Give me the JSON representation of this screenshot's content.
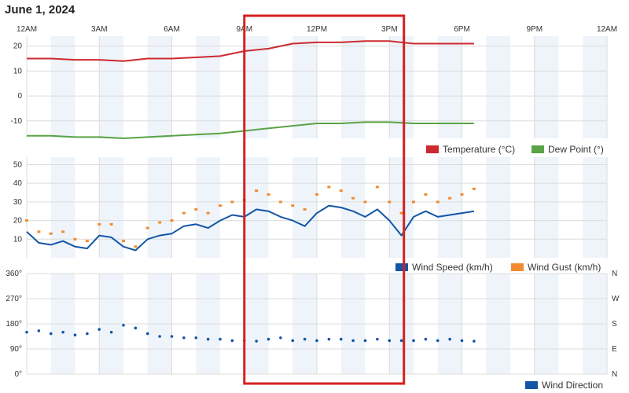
{
  "page": {
    "date_title": "June 1, 2024"
  },
  "colors": {
    "temperature": "#cc2a2f",
    "dew_point": "#5aa346",
    "wind_speed": "#1456a6",
    "wind_gust": "#f28b30",
    "wind_direction": "#1456a6",
    "night_band": "#eef4fa",
    "grid": "#dcdcdc",
    "highlight": "#d62020"
  },
  "time_axis": {
    "labels": [
      "12AM",
      "3AM",
      "6AM",
      "9AM",
      "12PM",
      "3PM",
      "6PM",
      "9PM",
      "12AM"
    ],
    "hours": [
      0,
      3,
      6,
      9,
      12,
      15,
      18,
      21,
      24
    ]
  },
  "highlight": {
    "start_hour": 9.0,
    "end_hour": 15.6
  },
  "chart_data": [
    {
      "type": "line",
      "panel": "temperature",
      "x_unit": "hour",
      "ylim": [
        -17,
        24
      ],
      "yticks": [
        20,
        10,
        0,
        -10
      ],
      "grid": true,
      "legend_position": "bottom-right",
      "series": [
        {
          "name": "Temperature (°C)",
          "x": [
            0,
            1,
            2,
            3,
            4,
            5,
            6,
            7,
            8,
            9,
            10,
            11,
            12,
            13,
            14,
            15,
            16,
            17,
            18,
            18.5
          ],
          "values": [
            15,
            15,
            14.5,
            14.5,
            14,
            15,
            15,
            15.5,
            16,
            18,
            19,
            21,
            21.5,
            21.5,
            22,
            22,
            21,
            21,
            21,
            21
          ]
        },
        {
          "name": "Dew Point (°)",
          "x": [
            0,
            1,
            2,
            3,
            4,
            5,
            6,
            7,
            8,
            9,
            10,
            11,
            12,
            13,
            14,
            15,
            16,
            17,
            18,
            18.5
          ],
          "values": [
            -16,
            -16,
            -16.5,
            -16.5,
            -17,
            -16.5,
            -16,
            -15.5,
            -15,
            -14,
            -13,
            -12,
            -11,
            -11,
            -10.5,
            -10.5,
            -11,
            -11,
            -11,
            -11
          ]
        }
      ]
    },
    {
      "type": "line",
      "panel": "wind_speed",
      "x_unit": "hour",
      "ylim": [
        0,
        54
      ],
      "yticks": [
        50,
        40,
        30,
        20,
        10
      ],
      "grid": true,
      "legend_position": "bottom-right",
      "series": [
        {
          "name": "Wind Speed (km/h)",
          "x": [
            0,
            0.5,
            1,
            1.5,
            2,
            2.5,
            3,
            3.5,
            4,
            4.5,
            5,
            5.5,
            6,
            6.5,
            7,
            7.5,
            8,
            8.5,
            9,
            9.5,
            10,
            10.5,
            11,
            11.5,
            12,
            12.5,
            13,
            13.5,
            14,
            14.5,
            15,
            15.5,
            16,
            16.5,
            17,
            17.5,
            18,
            18.5
          ],
          "values": [
            14,
            8,
            7,
            9,
            6,
            5,
            12,
            11,
            6,
            4,
            10,
            12,
            13,
            17,
            18,
            16,
            20,
            23,
            22,
            26,
            25,
            22,
            20,
            17,
            24,
            28,
            27,
            25,
            22,
            26,
            20,
            12,
            22,
            25,
            22,
            23,
            24,
            25
          ]
        },
        {
          "name": "Wind Gust (km/h)",
          "x": [
            0,
            0.5,
            1,
            1.5,
            2,
            2.5,
            3,
            3.5,
            4,
            4.5,
            5,
            5.5,
            6,
            6.5,
            7,
            7.5,
            8,
            8.5,
            9,
            9.5,
            10,
            10.5,
            11,
            11.5,
            12,
            12.5,
            13,
            13.5,
            14,
            14.5,
            15,
            15.5,
            16,
            16.5,
            17,
            17.5,
            18,
            18.5
          ],
          "values": [
            20,
            14,
            13,
            14,
            10,
            9,
            18,
            18,
            9,
            6,
            16,
            19,
            20,
            24,
            26,
            24,
            28,
            30,
            31,
            36,
            34,
            30,
            28,
            26,
            34,
            38,
            36,
            32,
            30,
            38,
            30,
            24,
            30,
            34,
            30,
            32,
            34,
            37
          ]
        }
      ]
    },
    {
      "type": "scatter",
      "panel": "wind_direction",
      "x_unit": "hour",
      "ylim": [
        0,
        360
      ],
      "yticks_left": [
        "360°",
        "270°",
        "180°",
        "90°",
        "0°"
      ],
      "yticks_left_values": [
        360,
        270,
        180,
        90,
        0
      ],
      "yticks_right": [
        "N",
        "W",
        "S",
        "E",
        "N"
      ],
      "grid": true,
      "legend_position": "bottom-right",
      "series": [
        {
          "name": "Wind Direction",
          "x": [
            0,
            0.5,
            1,
            1.5,
            2,
            2.5,
            3,
            3.5,
            4,
            4.5,
            5,
            5.5,
            6,
            6.5,
            7,
            7.5,
            8,
            8.5,
            9,
            9.5,
            10,
            10.5,
            11,
            11.5,
            12,
            12.5,
            13,
            13.5,
            14,
            14.5,
            15,
            15.5,
            16,
            16.5,
            17,
            17.5,
            18,
            18.5
          ],
          "values": [
            150,
            155,
            145,
            150,
            140,
            145,
            160,
            150,
            175,
            165,
            145,
            135,
            135,
            130,
            130,
            125,
            125,
            120,
            120,
            118,
            125,
            130,
            120,
            125,
            120,
            125,
            125,
            120,
            120,
            125,
            120,
            120,
            120,
            125,
            120,
            125,
            120,
            118
          ]
        }
      ]
    }
  ]
}
